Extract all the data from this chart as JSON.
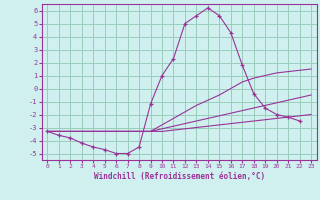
{
  "xlabel": "Windchill (Refroidissement éolien,°C)",
  "ylabel": "",
  "bg_color": "#cff0ee",
  "line_color": "#993399",
  "grid_color": "#99ccbb",
  "xlim": [
    -0.5,
    23.5
  ],
  "ylim": [
    -5.5,
    6.5
  ],
  "xticks": [
    0,
    1,
    2,
    3,
    4,
    5,
    6,
    7,
    8,
    9,
    10,
    11,
    12,
    13,
    14,
    15,
    16,
    17,
    18,
    19,
    20,
    21,
    22,
    23
  ],
  "yticks": [
    -5,
    -4,
    -3,
    -2,
    -1,
    0,
    1,
    2,
    3,
    4,
    5,
    6
  ],
  "series": [
    {
      "x": [
        0,
        1,
        2,
        3,
        4,
        5,
        6,
        7,
        8,
        9,
        10,
        11,
        12,
        13,
        14,
        15,
        16,
        17,
        18,
        19,
        20,
        21,
        22,
        23
      ],
      "y": [
        -3.3,
        -3.6,
        -3.8,
        -4.2,
        -4.5,
        -4.7,
        -5.0,
        -5.0,
        -4.5,
        -1.2,
        1.0,
        2.3,
        5.0,
        5.6,
        6.2,
        5.6,
        4.3,
        1.8,
        -0.4,
        -1.5,
        -2.0,
        -2.2,
        -2.5,
        null
      ],
      "has_markers": true,
      "x_markers": [
        0,
        1,
        2,
        3,
        4,
        5,
        6,
        7,
        8,
        9,
        10,
        11,
        12,
        13,
        14,
        15,
        16,
        17,
        18,
        19,
        20,
        21,
        22
      ],
      "y_markers": [
        -3.3,
        -3.6,
        -3.8,
        -4.2,
        -4.5,
        -4.7,
        -5.0,
        -5.0,
        -4.5,
        -1.2,
        1.0,
        2.3,
        5.0,
        5.6,
        6.2,
        5.6,
        4.3,
        1.8,
        -0.4,
        -1.5,
        -2.0,
        -2.2,
        -2.5
      ]
    },
    {
      "x": [
        0,
        1,
        2,
        3,
        4,
        5,
        6,
        7,
        8,
        9,
        10,
        11,
        12,
        13,
        14,
        15,
        16,
        17,
        18,
        19,
        20,
        21,
        22,
        23
      ],
      "y": [
        -3.3,
        -3.3,
        -3.3,
        -3.3,
        -3.3,
        -3.3,
        -3.3,
        -3.3,
        -3.3,
        -3.3,
        -2.8,
        -2.3,
        -1.8,
        -1.3,
        -0.9,
        -0.5,
        -0.0,
        0.5,
        0.8,
        1.0,
        1.2,
        1.3,
        1.4,
        1.5
      ],
      "has_markers": false
    },
    {
      "x": [
        0,
        1,
        2,
        3,
        4,
        5,
        6,
        7,
        8,
        9,
        10,
        11,
        12,
        13,
        14,
        15,
        16,
        17,
        18,
        19,
        20,
        21,
        22,
        23
      ],
      "y": [
        -3.3,
        -3.3,
        -3.3,
        -3.3,
        -3.3,
        -3.3,
        -3.3,
        -3.3,
        -3.3,
        -3.3,
        -3.1,
        -2.9,
        -2.7,
        -2.5,
        -2.3,
        -2.1,
        -1.9,
        -1.7,
        -1.5,
        -1.3,
        -1.1,
        -0.9,
        -0.7,
        -0.5
      ],
      "has_markers": false
    },
    {
      "x": [
        0,
        1,
        2,
        3,
        4,
        5,
        6,
        7,
        8,
        9,
        10,
        11,
        12,
        13,
        14,
        15,
        16,
        17,
        18,
        19,
        20,
        21,
        22,
        23
      ],
      "y": [
        -3.3,
        -3.3,
        -3.3,
        -3.3,
        -3.3,
        -3.3,
        -3.3,
        -3.3,
        -3.3,
        -3.3,
        -3.3,
        -3.2,
        -3.1,
        -3.0,
        -2.9,
        -2.8,
        -2.7,
        -2.6,
        -2.5,
        -2.4,
        -2.3,
        -2.2,
        -2.1,
        -2.0
      ],
      "has_markers": false
    }
  ]
}
